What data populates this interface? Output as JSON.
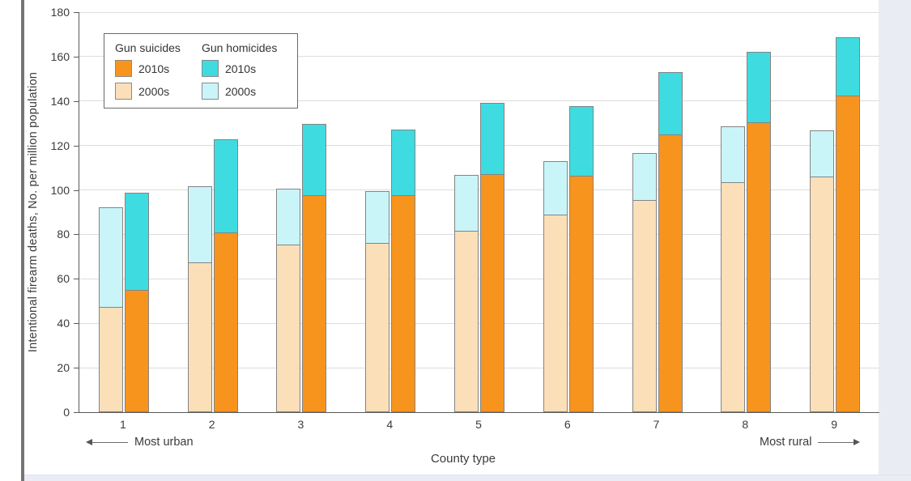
{
  "chart_data": {
    "type": "bar",
    "stacked": true,
    "title": "",
    "xlabel": "County type",
    "ylabel": "Intentional firearm deaths, No. per million population",
    "categories": [
      "1",
      "2",
      "3",
      "4",
      "5",
      "6",
      "7",
      "8",
      "9"
    ],
    "x_annotations": {
      "left": "Most urban",
      "right": "Most rural"
    },
    "ylim": [
      0,
      180
    ],
    "y_ticks": [
      0,
      20,
      40,
      60,
      80,
      100,
      120,
      140,
      160,
      180
    ],
    "grid": true,
    "legend_position": "top-left",
    "stack_order": [
      "Gun suicides",
      "Gun homicides"
    ],
    "series": [
      {
        "name": "Gun suicides",
        "decade": "2000s",
        "color": "#FBDFB8",
        "values": [
          47.5,
          67.5,
          75.5,
          76,
          81.5,
          89,
          95.5,
          103.5,
          106
        ]
      },
      {
        "name": "Gun homicides",
        "decade": "2000s",
        "color": "#C9F5F8",
        "values": [
          45,
          34.5,
          25.5,
          24,
          25.5,
          24.5,
          21.5,
          25.5,
          21
        ]
      },
      {
        "name": "Gun suicides",
        "decade": "2010s",
        "color": "#F7941E",
        "values": [
          55,
          81,
          97.5,
          97.5,
          107,
          106.5,
          125,
          130.5,
          142.5
        ]
      },
      {
        "name": "Gun homicides",
        "decade": "2010s",
        "color": "#3EDCE0",
        "values": [
          44,
          42,
          32.5,
          30,
          32.5,
          31.5,
          28.5,
          32,
          26.5
        ]
      }
    ]
  },
  "legend": {
    "groups": [
      {
        "title": "Gun suicides",
        "items": [
          {
            "label": "2010s",
            "color": "#F7941E"
          },
          {
            "label": "2000s",
            "color": "#FBDFB8"
          }
        ]
      },
      {
        "title": "Gun homicides",
        "items": [
          {
            "label": "2010s",
            "color": "#3EDCE0"
          },
          {
            "label": "2000s",
            "color": "#C9F5F8"
          }
        ]
      }
    ]
  },
  "annotations": {
    "most_urban": "Most urban",
    "most_rural": "Most rural"
  },
  "axis_titles": {
    "y": "Intentional firearm deaths, No. per million population",
    "x": "County type"
  }
}
